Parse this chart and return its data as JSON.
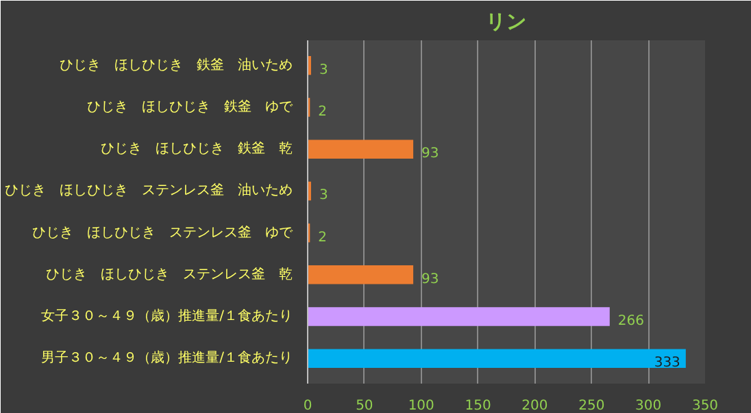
{
  "chart_data": {
    "type": "bar",
    "orientation": "horizontal",
    "title": "リン",
    "categories": [
      "ひじき　ほしひじき　鉄釜　油いため",
      "ひじき　ほしひじき　鉄釜　ゆで",
      "ひじき　ほしひじき　鉄釜　乾",
      "ひじき　ほしひじき　ステンレス釜　油いため",
      "ひじき　ほしひじき　ステンレス釜　ゆで",
      "ひじき　ほしひじき　ステンレス釜　乾",
      "女子３０～４９（歳）推進量/１食あたり",
      "男子３０～４９（歳）推進量/１食あたり"
    ],
    "values": [
      3,
      2,
      93,
      3,
      2,
      93,
      266,
      333
    ],
    "colors": [
      "#ed7d31",
      "#ed7d31",
      "#ed7d31",
      "#ed7d31",
      "#ed7d31",
      "#ed7d31",
      "#cc99ff",
      "#00b0f0"
    ],
    "xlim": [
      0,
      350
    ],
    "xticks": [
      0,
      50,
      100,
      150,
      200,
      250,
      300,
      350
    ],
    "grid": "x",
    "data_labels": true
  }
}
